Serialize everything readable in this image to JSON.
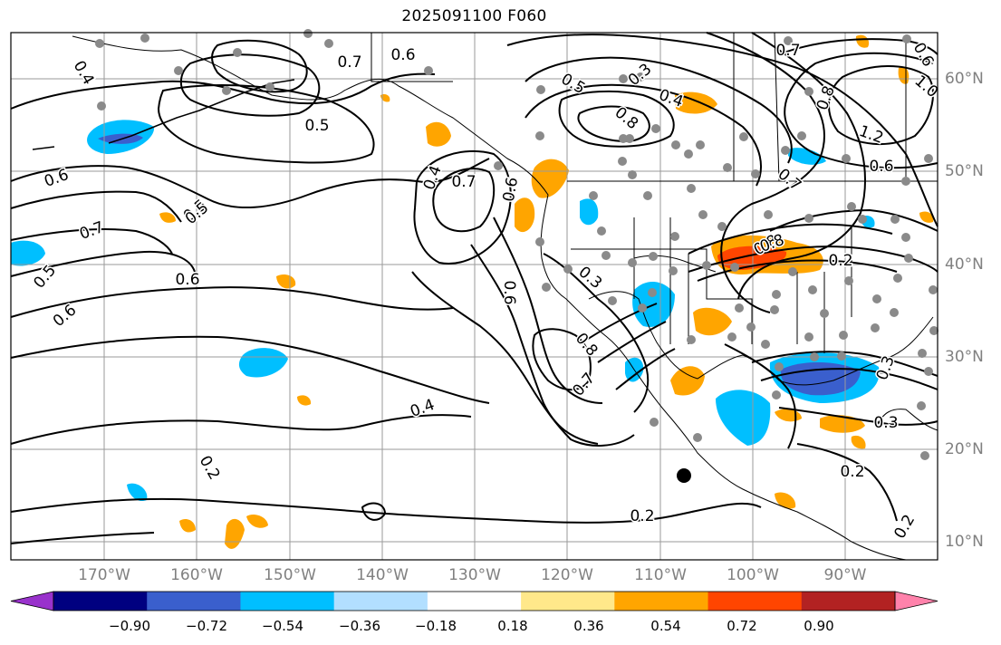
{
  "title": "2025091100 F060",
  "lon_labels": [
    "170°W",
    "160°W",
    "150°W",
    "140°W",
    "130°W",
    "120°W",
    "110°W",
    "100°W",
    "90°W"
  ],
  "lat_labels": [
    "60°N",
    "50°N",
    "40°N",
    "30°N",
    "20°N",
    "10°N"
  ],
  "contour_labels": [
    "0.4",
    "0.6",
    "0.7",
    "0.5",
    "0.3",
    "0.4",
    "0.8",
    "0.8",
    "1.0",
    "1.2",
    "0.6",
    "0.5",
    "0.6",
    "0.8",
    "0.7",
    "0.5",
    "0.6",
    "0.4",
    "0.7",
    "0.6",
    "0.5",
    "0.6",
    "0.3",
    "0.8",
    "0.7",
    "0.6",
    "0.4",
    "0.2",
    "0.2",
    "0.3",
    "0.2",
    "0.7",
    "0.8",
    "0.7",
    "0.2",
    "0.3",
    "0.2",
    "0.6",
    "0.5"
  ],
  "colorbar": {
    "ticks": [
      "−0.90",
      "−0.72",
      "−0.54",
      "−0.36",
      "−0.18",
      "0.18",
      "0.36",
      "0.54",
      "0.72",
      "0.90"
    ],
    "colors": [
      "#9932cc",
      "#000080",
      "#3a5fcd",
      "#00bfff",
      "#b2dfff",
      "#ffffff",
      "#ffe88a",
      "#ffa500",
      "#ff4500",
      "#b22222",
      "#ff82ab"
    ]
  }
}
